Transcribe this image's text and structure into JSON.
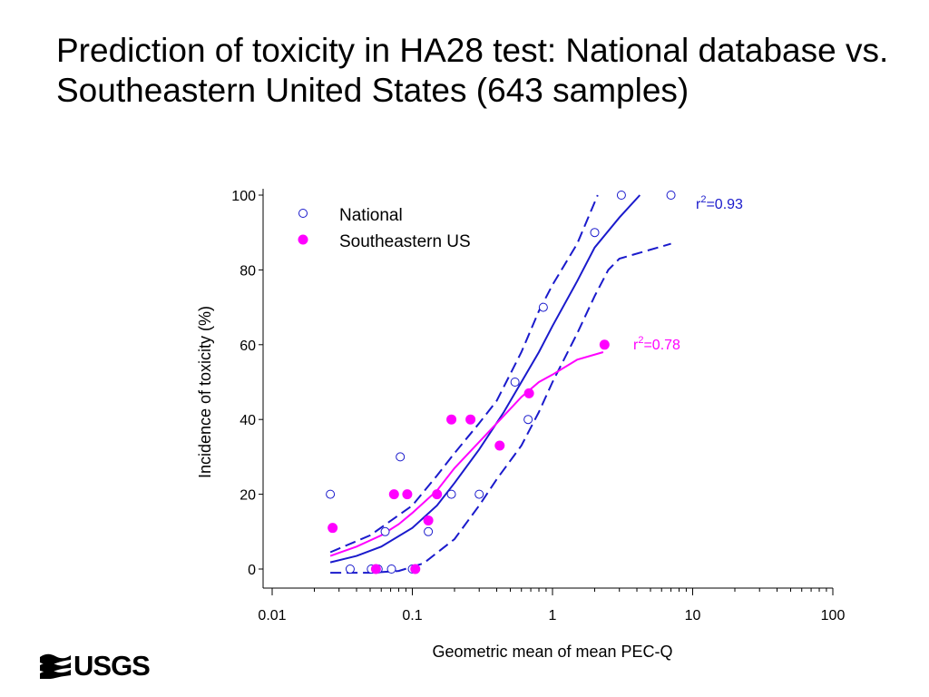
{
  "slide": {
    "title": "Prediction of toxicity in HA28 test: National database vs. Southeastern United States (643 samples)",
    "logo_text": "USGS"
  },
  "chart_data": {
    "type": "scatter",
    "x_scale": "log",
    "xlim": [
      0.01,
      100
    ],
    "ylim": [
      0,
      100
    ],
    "xlabel": "Geometric mean of mean PEC-Q",
    "ylabel": "Incidence of toxicity (%)",
    "x_ticks": [
      0.01,
      0.1,
      1,
      10,
      100
    ],
    "x_tick_labels": [
      "0.01",
      "0.1",
      "1",
      "10",
      "100"
    ],
    "y_ticks": [
      0,
      20,
      40,
      60,
      80,
      100
    ],
    "y_tick_labels": [
      "0",
      "20",
      "40",
      "60",
      "80",
      "100"
    ],
    "grid": false,
    "legend_position": "top-left",
    "legend": [
      {
        "label": "National",
        "marker": "open-circle",
        "color": "#1a1acc"
      },
      {
        "label": "Southeastern US",
        "marker": "filled-circle",
        "color": "#ff00ff"
      }
    ],
    "series": [
      {
        "name": "National",
        "marker": "open-circle",
        "color": "#1a1acc",
        "points": [
          [
            0.026,
            20
          ],
          [
            0.036,
            0
          ],
          [
            0.051,
            0
          ],
          [
            0.057,
            0
          ],
          [
            0.064,
            10
          ],
          [
            0.071,
            0
          ],
          [
            0.082,
            30
          ],
          [
            0.1,
            0
          ],
          [
            0.13,
            10
          ],
          [
            0.19,
            20
          ],
          [
            0.3,
            20
          ],
          [
            0.54,
            50
          ],
          [
            0.67,
            40
          ],
          [
            0.86,
            70
          ],
          [
            2.0,
            90
          ],
          [
            3.1,
            100
          ],
          [
            7.0,
            100
          ]
        ],
        "fit": {
          "r2_label": "r²=0.93",
          "r2_sup": "2",
          "r2_prefix": "r",
          "r2_value": "=0.93",
          "line_style": "solid",
          "curve": [
            [
              0.026,
              1.8
            ],
            [
              0.04,
              3.5
            ],
            [
              0.06,
              6
            ],
            [
              0.1,
              11
            ],
            [
              0.15,
              17
            ],
            [
              0.2,
              23
            ],
            [
              0.3,
              32
            ],
            [
              0.45,
              42
            ],
            [
              0.6,
              50
            ],
            [
              0.8,
              58
            ],
            [
              1.0,
              65
            ],
            [
              1.5,
              77
            ],
            [
              2.0,
              86
            ],
            [
              3.0,
              94
            ],
            [
              4.2,
              100
            ]
          ],
          "ci_upper": [
            [
              0.026,
              4.5
            ],
            [
              0.05,
              9
            ],
            [
              0.1,
              17
            ],
            [
              0.15,
              25
            ],
            [
              0.2,
              31
            ],
            [
              0.3,
              39
            ],
            [
              0.4,
              45
            ],
            [
              0.6,
              58
            ],
            [
              0.8,
              69
            ],
            [
              1.0,
              76
            ],
            [
              1.5,
              87
            ],
            [
              2.1,
              100
            ]
          ],
          "ci_lower": [
            [
              0.026,
              -1
            ],
            [
              0.05,
              -1
            ],
            [
              0.08,
              -0.5
            ],
            [
              0.12,
              1.5
            ],
            [
              0.2,
              8
            ],
            [
              0.3,
              17
            ],
            [
              0.4,
              24
            ],
            [
              0.6,
              33
            ],
            [
              0.8,
              42
            ],
            [
              1.0,
              50
            ],
            [
              1.5,
              63
            ],
            [
              2.0,
              73
            ],
            [
              2.5,
              80
            ],
            [
              3.0,
              83
            ],
            [
              7.0,
              87
            ]
          ]
        }
      },
      {
        "name": "Southeastern US",
        "marker": "filled-circle",
        "color": "#ff00ff",
        "points": [
          [
            0.027,
            11
          ],
          [
            0.055,
            0
          ],
          [
            0.074,
            20
          ],
          [
            0.092,
            20
          ],
          [
            0.105,
            0
          ],
          [
            0.13,
            13
          ],
          [
            0.15,
            20
          ],
          [
            0.19,
            40
          ],
          [
            0.26,
            40
          ],
          [
            0.42,
            33
          ],
          [
            0.68,
            47
          ],
          [
            2.35,
            60
          ]
        ],
        "fit": {
          "r2_prefix": "r",
          "r2_sup": "2",
          "r2_value": "=0.78",
          "line_style": "solid",
          "curve": [
            [
              0.026,
              3.5
            ],
            [
              0.04,
              6
            ],
            [
              0.06,
              9
            ],
            [
              0.08,
              12
            ],
            [
              0.1,
              15
            ],
            [
              0.15,
              21
            ],
            [
              0.2,
              27
            ],
            [
              0.3,
              34
            ],
            [
              0.45,
              41
            ],
            [
              0.6,
              46
            ],
            [
              0.8,
              50
            ],
            [
              1.0,
              52
            ],
            [
              1.5,
              56
            ],
            [
              2.3,
              58
            ]
          ]
        }
      }
    ]
  }
}
